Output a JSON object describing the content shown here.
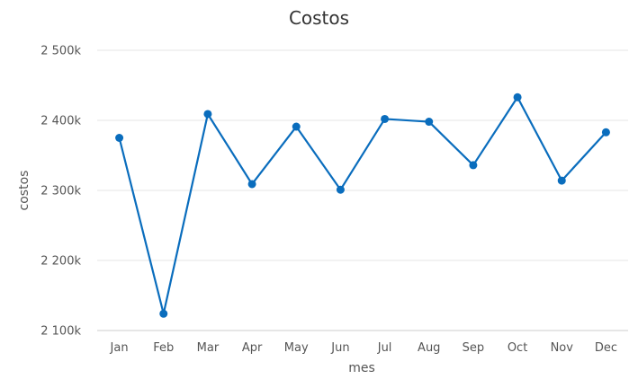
{
  "chart_data": {
    "type": "line",
    "title": "Costos",
    "xlabel": "mes",
    "ylabel": "costos",
    "categories": [
      "Jan",
      "Feb",
      "Mar",
      "Apr",
      "May",
      "Jun",
      "Jul",
      "Aug",
      "Sep",
      "Oct",
      "Nov",
      "Dec"
    ],
    "series": [
      {
        "values": [
          2375000,
          2124000,
          2409000,
          2309000,
          2391000,
          2301000,
          2402000,
          2398000,
          2336000,
          2433000,
          2314000,
          2383000
        ]
      }
    ],
    "ylim": [
      2100000,
      2500000
    ],
    "yticks": [
      2100000,
      2200000,
      2300000,
      2400000,
      2500000
    ],
    "ytick_labels": [
      "2 100k",
      "2 200k",
      "2 300k",
      "2 400k",
      "2 500k"
    ],
    "grid": true,
    "legend": "none",
    "colors": {
      "series": "#0a6dbd",
      "grid": "#e6e6e6",
      "text": "#333333"
    }
  }
}
